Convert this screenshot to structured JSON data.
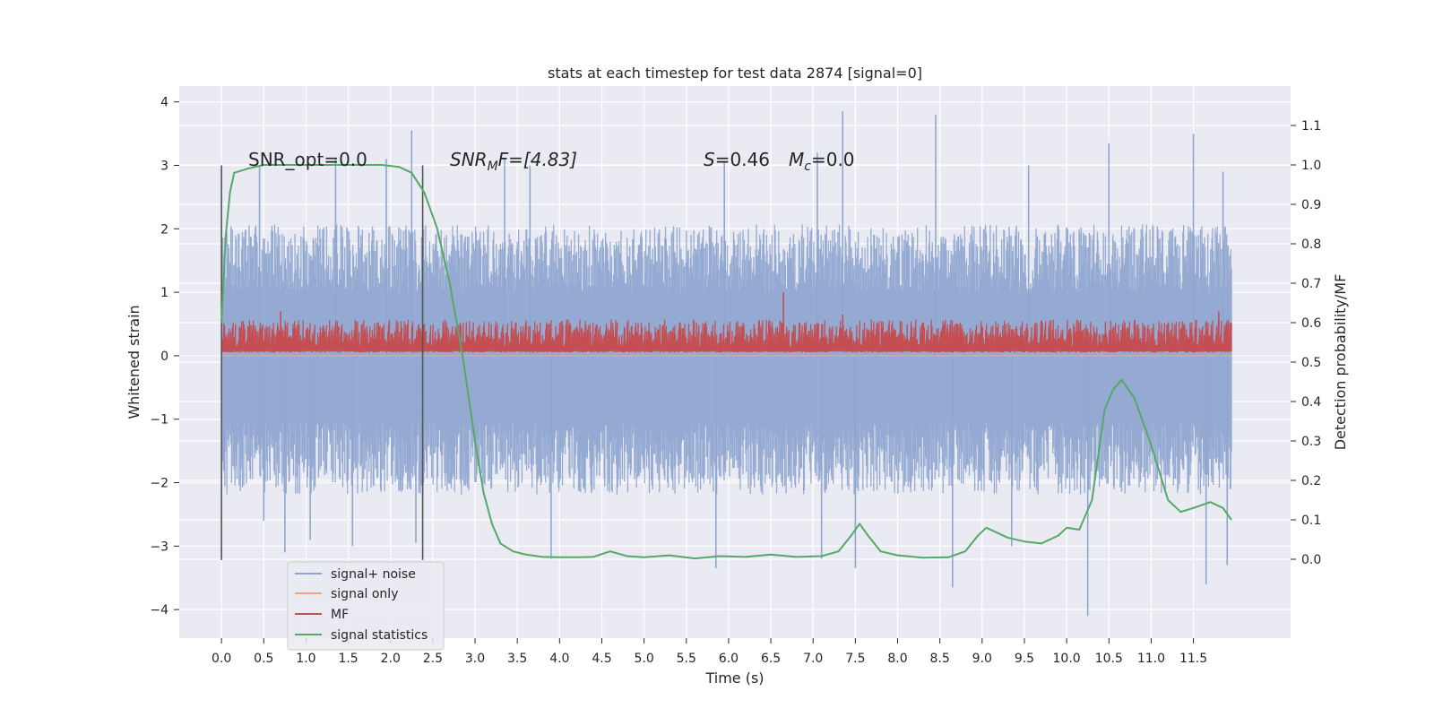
{
  "chart_data": {
    "type": "line",
    "title": "stats at each timestep for test data 2874 [signal=0]",
    "xlabel": "Time (s)",
    "ylabel_left": "Whitened strain",
    "ylabel_right": "Detection probability/MF",
    "xlim": [
      -0.5,
      12.65
    ],
    "ylim_left": [
      -4.45,
      4.25
    ],
    "ylim_right": [
      -0.2,
      1.2
    ],
    "x_ticks": [
      "0.0",
      "0.5",
      "1.0",
      "1.5",
      "2.0",
      "2.5",
      "3.0",
      "3.5",
      "4.0",
      "4.5",
      "5.0",
      "5.5",
      "6.0",
      "6.5",
      "7.0",
      "7.5",
      "8.0",
      "8.5",
      "9.0",
      "9.5",
      "10.0",
      "10.5",
      "11.0",
      "11.5"
    ],
    "y_ticks_left": [
      "4",
      "3",
      "2",
      "1",
      "0",
      "−1",
      "−2",
      "−3",
      "−4"
    ],
    "y_ticks_right": [
      "1.1",
      "1.0",
      "0.9",
      "0.8",
      "0.7",
      "0.6",
      "0.5",
      "0.4",
      "0.3",
      "0.2",
      "0.1",
      "0.0"
    ],
    "grid": true,
    "legend_position": "lower-left",
    "annotations": {
      "snr_opt": "SNR_opt=0.0",
      "snr_mf_main": "SNR",
      "snr_mf_sub": "M",
      "snr_mf_rest": "F=[4.83]",
      "s_main": "S",
      "s_rest": "=0.46",
      "mc_main": "M",
      "mc_sub": "c",
      "mc_rest": "=0.0"
    },
    "vertical_markers": [
      {
        "x": 0.0,
        "y_from": -3.22,
        "y_to": 3.0
      },
      {
        "x": 2.38,
        "y_from": -3.22,
        "y_to": 3.0
      }
    ],
    "series": [
      {
        "name": "signal+ noise",
        "color": "#8fa6d0",
        "axis": "left",
        "x_range": [
          0.0,
          11.95
        ],
        "envelope": {
          "typical_lower": -1.9,
          "typical_upper": 1.8
        },
        "peaks": [
          {
            "x": 0.45,
            "y": 3.0
          },
          {
            "x": 1.35,
            "y": 3.1
          },
          {
            "x": 1.95,
            "y": 3.1
          },
          {
            "x": 2.25,
            "y": 3.55
          },
          {
            "x": 3.35,
            "y": 3.1
          },
          {
            "x": 3.65,
            "y": 3.0
          },
          {
            "x": 5.95,
            "y": 3.05
          },
          {
            "x": 7.05,
            "y": 3.2
          },
          {
            "x": 7.35,
            "y": 3.85
          },
          {
            "x": 8.45,
            "y": 3.8
          },
          {
            "x": 9.55,
            "y": 3.0
          },
          {
            "x": 10.5,
            "y": 3.35
          },
          {
            "x": 11.5,
            "y": 3.5
          },
          {
            "x": 11.85,
            "y": 2.9
          }
        ],
        "troughs": [
          {
            "x": 0.5,
            "y": -2.6
          },
          {
            "x": 0.75,
            "y": -3.1
          },
          {
            "x": 1.05,
            "y": -2.9
          },
          {
            "x": 1.55,
            "y": -3.0
          },
          {
            "x": 2.3,
            "y": -2.95
          },
          {
            "x": 3.9,
            "y": -3.2
          },
          {
            "x": 5.85,
            "y": -3.35
          },
          {
            "x": 7.1,
            "y": -3.2
          },
          {
            "x": 7.5,
            "y": -3.35
          },
          {
            "x": 8.65,
            "y": -3.65
          },
          {
            "x": 9.35,
            "y": -3.0
          },
          {
            "x": 10.25,
            "y": -4.1
          },
          {
            "x": 11.65,
            "y": -3.6
          },
          {
            "x": 11.9,
            "y": -3.3
          }
        ]
      },
      {
        "name": "signal only",
        "color": "#e8a98b",
        "axis": "left",
        "x": [
          0.0,
          11.95
        ],
        "y": [
          0.0,
          0.0
        ]
      },
      {
        "name": "MF",
        "color": "#c44e52",
        "axis": "left",
        "x_range": [
          0.0,
          11.95
        ],
        "envelope": {
          "typical_lower": 0.05,
          "typical_upper": 0.6
        },
        "peaks": [
          {
            "x": 0.7,
            "y": 0.7
          },
          {
            "x": 6.65,
            "y": 1.0
          },
          {
            "x": 7.35,
            "y": 0.65
          },
          {
            "x": 11.8,
            "y": 0.7
          }
        ]
      },
      {
        "name": "signal statistics",
        "color": "#55a868",
        "axis": "right",
        "x": [
          0.0,
          0.05,
          0.1,
          0.15,
          0.3,
          0.5,
          1.0,
          1.5,
          1.9,
          2.1,
          2.25,
          2.4,
          2.55,
          2.7,
          2.85,
          3.0,
          3.1,
          3.2,
          3.3,
          3.45,
          3.6,
          3.8,
          4.0,
          4.2,
          4.4,
          4.6,
          4.8,
          5.0,
          5.3,
          5.6,
          5.9,
          6.2,
          6.5,
          6.8,
          7.1,
          7.3,
          7.45,
          7.55,
          7.65,
          7.8,
          8.0,
          8.3,
          8.6,
          8.8,
          8.95,
          9.05,
          9.15,
          9.3,
          9.5,
          9.7,
          9.9,
          10.0,
          10.15,
          10.3,
          10.45,
          10.55,
          10.65,
          10.8,
          11.0,
          11.2,
          11.35,
          11.5,
          11.7,
          11.85,
          11.95
        ],
        "y": [
          0.6,
          0.82,
          0.93,
          0.98,
          0.99,
          1.0,
          1.0,
          1.0,
          1.0,
          0.995,
          0.98,
          0.93,
          0.84,
          0.7,
          0.52,
          0.3,
          0.17,
          0.09,
          0.04,
          0.02,
          0.012,
          0.006,
          0.005,
          0.005,
          0.006,
          0.02,
          0.008,
          0.005,
          0.01,
          0.002,
          0.008,
          0.006,
          0.012,
          0.006,
          0.008,
          0.02,
          0.06,
          0.09,
          0.06,
          0.02,
          0.01,
          0.004,
          0.005,
          0.02,
          0.06,
          0.08,
          0.07,
          0.055,
          0.045,
          0.04,
          0.06,
          0.08,
          0.075,
          0.15,
          0.38,
          0.43,
          0.455,
          0.41,
          0.29,
          0.15,
          0.12,
          0.13,
          0.145,
          0.13,
          0.1
        ]
      }
    ]
  }
}
